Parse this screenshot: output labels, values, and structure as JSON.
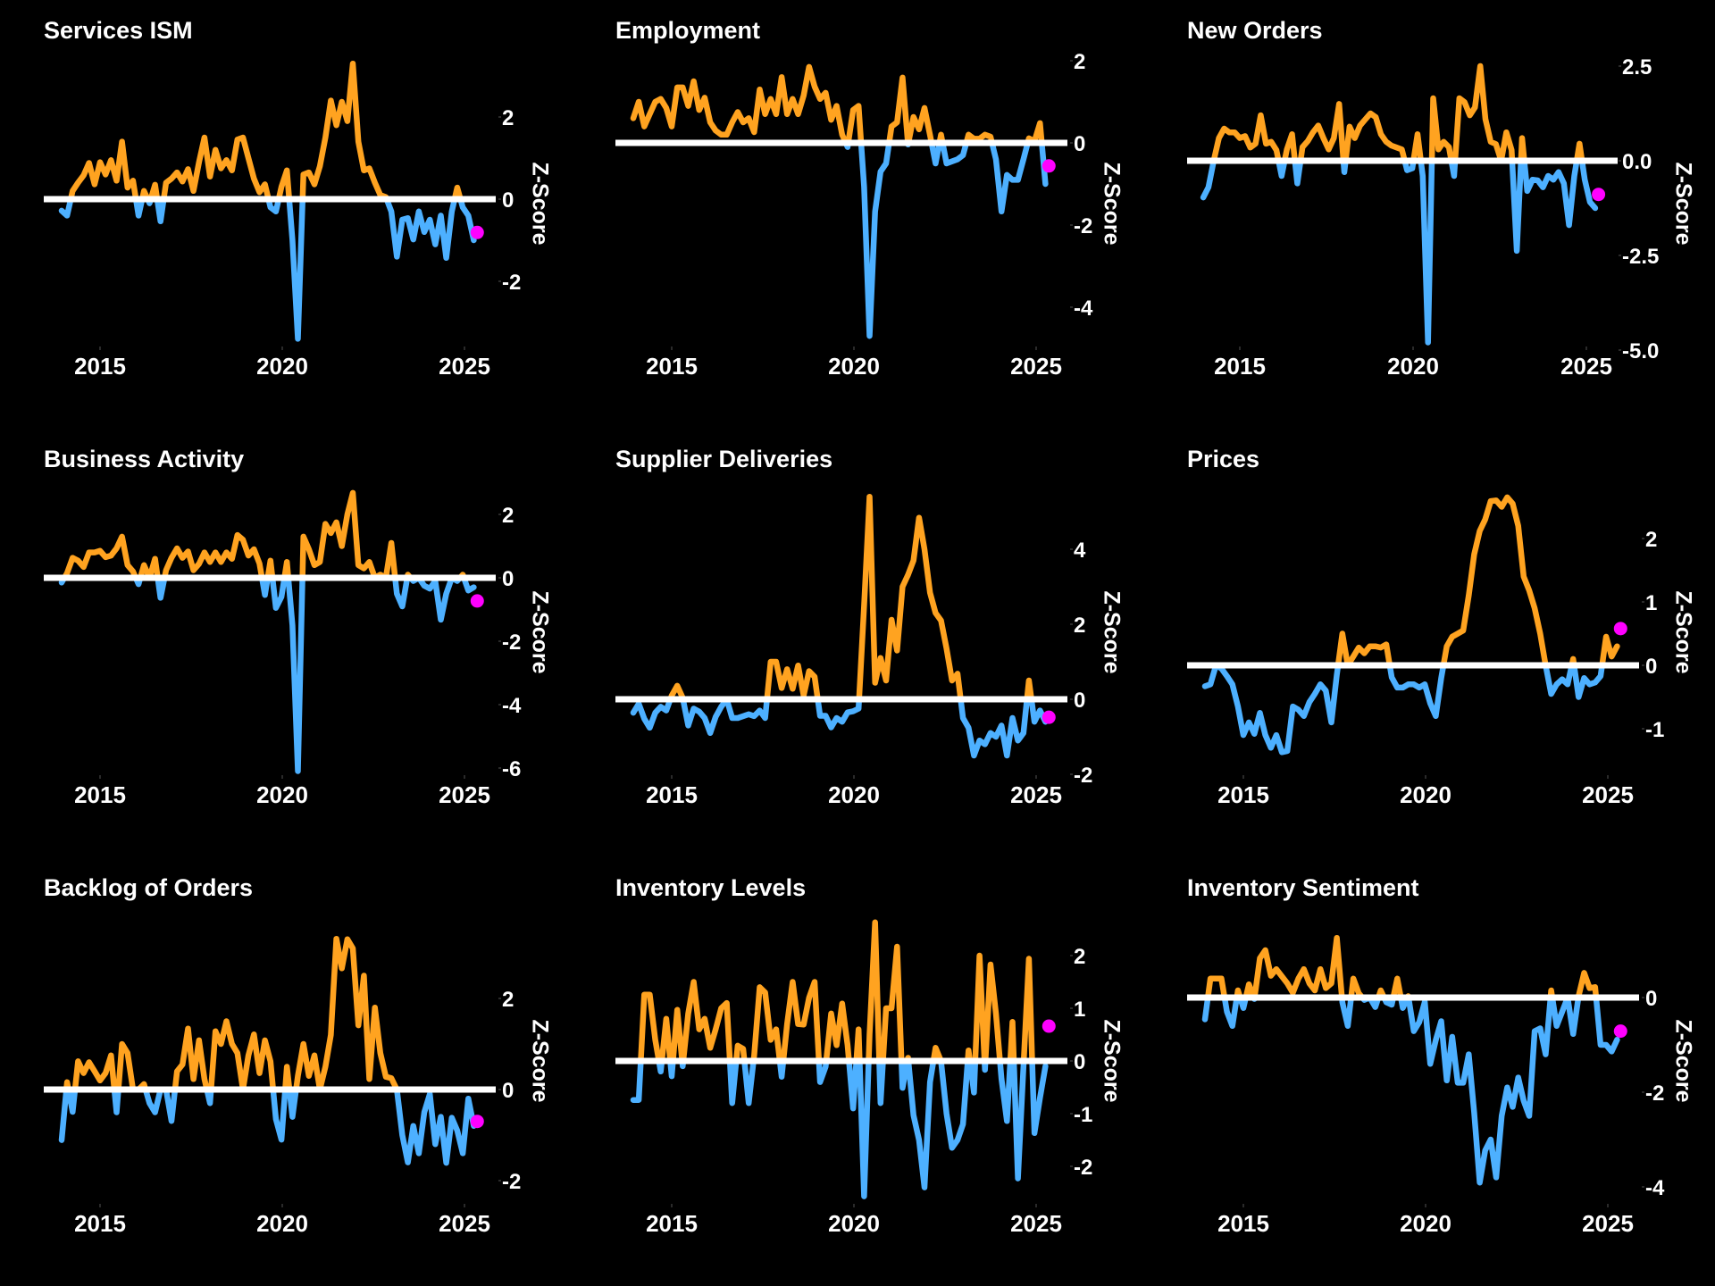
{
  "figure": {
    "background": "#000000",
    "colors": {
      "above_zero": "#FFA320",
      "below_zero": "#4DB0FF",
      "zero_line": "#FFFFFF",
      "latest_marker": "#FF00FF",
      "text": "#FFFFFF"
    },
    "layout_grid": "3x3"
  },
  "chart_data": [
    {
      "type": "line",
      "title": "Services ISM",
      "xlabel": "",
      "ylabel": "Z-Score",
      "x_ticks": [
        2015,
        2020,
        2025
      ],
      "y_ticks": [
        2,
        0,
        -2
      ],
      "y_tick_labels": [
        "2",
        "0",
        "-2"
      ],
      "x_start": 2013.945,
      "x_step": 0.1508,
      "values": [
        -0.28,
        -0.4,
        0.2,
        0.4,
        0.58,
        0.88,
        0.36,
        0.9,
        0.6,
        0.95,
        0.45,
        1.4,
        0.28,
        0.45,
        -0.4,
        0.2,
        -0.1,
        0.35,
        -0.54,
        0.4,
        0.5,
        0.65,
        0.43,
        0.73,
        0.2,
        0.9,
        1.5,
        0.55,
        1.2,
        0.75,
        0.95,
        0.7,
        1.45,
        1.5,
        1.0,
        0.5,
        0.17,
        0.36,
        -0.2,
        -0.3,
        0.3,
        0.7,
        -1.0,
        -3.4,
        0.6,
        0.65,
        0.36,
        0.8,
        1.5,
        2.4,
        1.8,
        2.37,
        1.9,
        3.3,
        1.4,
        0.7,
        0.75,
        0.4,
        0.1,
        0.05,
        -0.3,
        -1.4,
        -0.5,
        -0.46,
        -0.98,
        -0.3,
        -0.8,
        -0.5,
        -1.1,
        -0.4,
        -1.43,
        -0.3,
        0.28,
        -0.2,
        -0.4,
        -1.0
      ],
      "latest": {
        "x": 2025.35,
        "y": -0.81
      },
      "reference_line": 0
    },
    {
      "type": "line",
      "title": "Employment",
      "xlabel": "",
      "ylabel": "Z-Score",
      "x_ticks": [
        2015,
        2020,
        2025
      ],
      "y_ticks": [
        2,
        0,
        -2,
        -4
      ],
      "y_tick_labels": [
        "2",
        "0",
        "-2",
        "-4"
      ],
      "x_start": 2013.945,
      "x_step": 0.1508,
      "values": [
        0.6,
        1.0,
        0.4,
        0.7,
        1.0,
        1.07,
        0.85,
        0.4,
        1.35,
        1.35,
        0.9,
        1.5,
        0.8,
        1.1,
        0.5,
        0.3,
        0.2,
        0.2,
        0.5,
        0.75,
        0.5,
        0.6,
        0.26,
        1.3,
        0.7,
        1.07,
        0.7,
        1.6,
        0.7,
        1.07,
        0.7,
        1.15,
        1.85,
        1.37,
        1.07,
        1.22,
        0.56,
        0.9,
        0.2,
        -0.1,
        0.8,
        0.9,
        -1.07,
        -4.7,
        -1.67,
        -0.7,
        -0.5,
        0.4,
        0.5,
        1.59,
        -0.04,
        0.63,
        0.33,
        0.85,
        0.19,
        -0.5,
        0.2,
        -0.5,
        -0.45,
        -0.4,
        -0.3,
        0.2,
        0.1,
        0.1,
        0.2,
        0.15,
        -0.4,
        -1.67,
        -0.78,
        -0.9,
        -0.9,
        -0.4,
        0.11,
        0.04,
        0.48,
        -1.0
      ],
      "latest": {
        "x": 2025.35,
        "y": -0.56
      },
      "reference_line": 0
    },
    {
      "type": "line",
      "title": "New Orders",
      "xlabel": "",
      "ylabel": "Z-Score",
      "x_ticks": [
        2015,
        2020,
        2025
      ],
      "y_ticks": [
        2.5,
        0,
        -2.5,
        -5
      ],
      "y_tick_labels": [
        "2.5",
        "0.0",
        "-2.5",
        "-5.0"
      ],
      "x_start": 2013.945,
      "x_step": 0.1508,
      "values": [
        -0.97,
        -0.7,
        0.0,
        0.6,
        0.85,
        0.75,
        0.75,
        0.6,
        0.65,
        0.35,
        0.45,
        1.2,
        0.45,
        0.5,
        0.28,
        -0.4,
        0.3,
        0.7,
        -0.6,
        0.36,
        0.52,
        0.75,
        0.93,
        0.6,
        0.3,
        0.6,
        1.5,
        -0.3,
        0.9,
        0.6,
        0.93,
        1.09,
        1.25,
        1.15,
        0.7,
        0.5,
        0.4,
        0.35,
        0.3,
        -0.25,
        -0.2,
        0.7,
        -0.4,
        -4.8,
        1.65,
        0.3,
        0.5,
        0.36,
        -0.4,
        1.65,
        1.55,
        1.2,
        1.41,
        2.5,
        1.1,
        0.5,
        0.44,
        0.0,
        0.75,
        0.28,
        -2.38,
        0.6,
        -0.8,
        -0.5,
        -0.52,
        -0.7,
        -0.4,
        -0.5,
        -0.3,
        -0.6,
        -1.7,
        -0.4,
        0.45,
        -0.5,
        -1.09,
        -1.25
      ],
      "latest": {
        "x": 2025.35,
        "y": -0.89
      },
      "reference_line": 0
    },
    {
      "type": "line",
      "title": "Business Activity",
      "xlabel": "",
      "ylabel": "Z-Score",
      "x_ticks": [
        2015,
        2020,
        2025
      ],
      "y_ticks": [
        2,
        0,
        -2,
        -4,
        -6
      ],
      "y_tick_labels": [
        "2",
        "0",
        "-2",
        "-4",
        "-6"
      ],
      "x_start": 2013.945,
      "x_step": 0.1508,
      "values": [
        -0.15,
        0.15,
        0.63,
        0.54,
        0.34,
        0.8,
        0.8,
        0.85,
        0.65,
        0.7,
        0.93,
        1.3,
        0.4,
        0.2,
        -0.2,
        0.4,
        0.0,
        0.6,
        -0.63,
        0.24,
        0.63,
        0.93,
        0.63,
        0.83,
        0.24,
        0.44,
        0.8,
        0.5,
        0.8,
        0.5,
        0.8,
        0.6,
        1.35,
        1.2,
        0.7,
        0.9,
        0.45,
        -0.54,
        0.54,
        -0.95,
        -0.6,
        0.5,
        -1.5,
        -6.1,
        1.3,
        0.9,
        0.4,
        0.5,
        1.7,
        1.41,
        1.75,
        1.0,
        2.0,
        2.68,
        0.4,
        0.3,
        0.5,
        0.0,
        0.1,
        0.0,
        1.1,
        -0.5,
        -0.9,
        0.1,
        -0.1,
        0.0,
        -0.25,
        -0.34,
        -0.1,
        -1.32,
        -0.5,
        0.0,
        -0.1,
        0.1,
        -0.4,
        -0.3
      ],
      "latest": {
        "x": 2025.35,
        "y": -0.73
      },
      "reference_line": 0
    },
    {
      "type": "line",
      "title": "Supplier Deliveries",
      "xlabel": "",
      "ylabel": "Z-Score",
      "x_ticks": [
        2015,
        2020,
        2025
      ],
      "y_ticks": [
        4,
        2,
        0,
        -2
      ],
      "y_tick_labels": [
        "4",
        "2",
        "0",
        "-2"
      ],
      "x_start": 2013.945,
      "x_step": 0.1508,
      "values": [
        -0.36,
        -0.12,
        -0.52,
        -0.76,
        -0.36,
        -0.2,
        -0.3,
        0.1,
        0.36,
        0.04,
        -0.7,
        -0.25,
        -0.33,
        -0.5,
        -0.9,
        -0.47,
        -0.2,
        0.0,
        -0.5,
        -0.5,
        -0.45,
        -0.4,
        -0.45,
        -0.3,
        -0.5,
        1.0,
        1.0,
        0.3,
        0.8,
        0.28,
        0.9,
        0.1,
        0.75,
        0.6,
        -0.44,
        -0.44,
        -0.75,
        -0.5,
        -0.6,
        -0.35,
        -0.32,
        -0.25,
        2.5,
        5.4,
        0.44,
        1.1,
        0.5,
        2.12,
        1.3,
        3.0,
        3.32,
        3.7,
        4.84,
        4.0,
        2.84,
        2.3,
        2.1,
        1.35,
        0.5,
        0.68,
        -0.5,
        -0.76,
        -1.5,
        -1.1,
        -1.2,
        -0.9,
        -1.0,
        -0.7,
        -1.5,
        -0.5,
        -1.1,
        -0.9,
        0.5,
        -0.6,
        -0.3,
        -0.6
      ],
      "latest": {
        "x": 2025.35,
        "y": -0.48
      },
      "reference_line": 0
    },
    {
      "type": "line",
      "title": "Prices",
      "xlabel": "",
      "ylabel": "Z-Score",
      "x_ticks": [
        2015,
        2020,
        2025
      ],
      "y_ticks": [
        2,
        1,
        0,
        -1
      ],
      "y_tick_labels": [
        "2",
        "1",
        "0",
        "-1"
      ],
      "x_start": 2013.945,
      "x_step": 0.1508,
      "values": [
        -0.33,
        -0.3,
        0.0,
        -0.05,
        -0.17,
        -0.3,
        -0.65,
        -1.1,
        -0.9,
        -1.08,
        -0.75,
        -1.1,
        -1.3,
        -1.1,
        -1.37,
        -1.35,
        -0.65,
        -0.7,
        -0.8,
        -0.58,
        -0.45,
        -0.3,
        -0.4,
        -0.9,
        -0.15,
        0.5,
        0.0,
        0.14,
        0.28,
        0.19,
        0.3,
        0.3,
        0.28,
        0.33,
        -0.19,
        -0.35,
        -0.35,
        -0.3,
        -0.3,
        -0.35,
        -0.3,
        -0.6,
        -0.8,
        -0.2,
        0.3,
        0.45,
        0.5,
        0.55,
        1.1,
        1.75,
        2.12,
        2.3,
        2.59,
        2.6,
        2.5,
        2.65,
        2.55,
        2.2,
        1.4,
        1.18,
        0.9,
        0.5,
        0.0,
        -0.45,
        -0.3,
        -0.22,
        -0.3,
        0.1,
        -0.5,
        -0.2,
        -0.3,
        -0.27,
        -0.17,
        0.45,
        0.14,
        0.3
      ],
      "latest": {
        "x": 2025.35,
        "y": 0.58
      },
      "reference_line": 0
    },
    {
      "type": "line",
      "title": "Backlog of Orders",
      "xlabel": "",
      "ylabel": "Z-Score",
      "x_ticks": [
        2015,
        2020,
        2025
      ],
      "y_ticks": [
        2,
        0,
        -2
      ],
      "y_tick_labels": [
        "2",
        "0",
        "-2"
      ],
      "x_start": 2013.945,
      "x_step": 0.1508,
      "values": [
        -1.11,
        0.16,
        -0.49,
        0.62,
        0.36,
        0.6,
        0.4,
        0.2,
        0.36,
        0.75,
        -0.5,
        1.0,
        0.8,
        0.0,
        0.0,
        0.12,
        -0.3,
        -0.5,
        0.0,
        0.0,
        -0.69,
        0.4,
        0.55,
        1.34,
        0.23,
        1.08,
        0.23,
        -0.3,
        1.28,
        1.0,
        1.5,
        1.0,
        0.8,
        0.0,
        0.75,
        1.21,
        0.36,
        1.08,
        0.62,
        -0.65,
        -1.1,
        0.5,
        -0.6,
        0.3,
        1.0,
        0.3,
        0.75,
        0.0,
        0.5,
        1.2,
        3.31,
        2.66,
        3.3,
        3.1,
        1.41,
        2.5,
        0.23,
        1.8,
        0.8,
        0.28,
        0.25,
        0.0,
        -1.0,
        -1.6,
        -0.8,
        -1.4,
        -0.5,
        -0.1,
        -1.2,
        -0.6,
        -1.61,
        -0.62,
        -0.9,
        -1.4,
        -0.2,
        -0.8
      ],
      "latest": {
        "x": 2025.35,
        "y": -0.7
      },
      "reference_line": 0
    },
    {
      "type": "line",
      "title": "Inventory Levels",
      "xlabel": "",
      "ylabel": "Z-Score",
      "x_ticks": [
        2015,
        2020,
        2025
      ],
      "y_ticks": [
        2,
        1,
        0,
        -1,
        -2
      ],
      "y_tick_labels": [
        "2",
        "1",
        "0",
        "-1",
        "-2"
      ],
      "x_start": 2013.945,
      "x_step": 0.1508,
      "values": [
        -0.74,
        -0.74,
        1.26,
        1.26,
        0.4,
        -0.2,
        0.8,
        -0.29,
        0.97,
        -0.1,
        0.9,
        1.5,
        0.6,
        0.8,
        0.25,
        0.6,
        1.0,
        1.1,
        -0.8,
        0.29,
        0.23,
        -0.8,
        0.1,
        1.4,
        1.3,
        0.4,
        0.6,
        -0.3,
        0.7,
        1.5,
        0.7,
        0.69,
        1.2,
        1.5,
        -0.4,
        -0.11,
        0.9,
        0.3,
        1.09,
        0.3,
        -0.9,
        0.6,
        -2.57,
        0.5,
        2.63,
        -0.8,
        1.0,
        1.0,
        2.17,
        -0.51,
        0.06,
        -1.03,
        -1.5,
        -2.4,
        -0.4,
        0.25,
        0.0,
        -1.0,
        -1.65,
        -1.5,
        -1.2,
        0.2,
        -0.6,
        2.0,
        -0.17,
        1.83,
        0.9,
        -0.34,
        -1.14,
        0.74,
        -2.23,
        -0.11,
        1.94,
        -1.37,
        -0.7,
        -0.1
      ],
      "latest": {
        "x": 2025.35,
        "y": 0.66
      },
      "reference_line": 0
    },
    {
      "type": "line",
      "title": "Inventory Sentiment",
      "xlabel": "",
      "ylabel": "Z-Score",
      "x_ticks": [
        2015,
        2020,
        2025
      ],
      "y_ticks": [
        0,
        -2,
        -4
      ],
      "y_tick_labels": [
        "0",
        "-2",
        "-4"
      ],
      "x_start": 2013.945,
      "x_step": 0.1508,
      "values": [
        -0.46,
        0.4,
        0.4,
        0.4,
        -0.3,
        -0.6,
        0.15,
        -0.22,
        0.28,
        -0.03,
        0.83,
        1.0,
        0.46,
        0.6,
        0.45,
        0.3,
        0.1,
        0.4,
        0.6,
        0.3,
        0.15,
        0.6,
        0.2,
        0.3,
        1.26,
        -0.1,
        -0.6,
        0.4,
        0.09,
        -0.05,
        0.0,
        -0.2,
        0.15,
        -0.1,
        -0.15,
        0.4,
        -0.22,
        0.03,
        -0.71,
        -0.52,
        -0.09,
        -1.4,
        -0.9,
        -0.5,
        -1.75,
        -0.83,
        -1.8,
        -1.8,
        -1.2,
        -2.43,
        -3.91,
        -3.23,
        -3.0,
        -3.8,
        -2.5,
        -1.9,
        -2.31,
        -1.69,
        -2.18,
        -2.5,
        -0.71,
        -0.65,
        -1.2,
        0.15,
        -0.6,
        -0.3,
        0.0,
        -0.77,
        0.03,
        0.52,
        0.2,
        0.22,
        -1.0,
        -1.0,
        -1.14,
        -0.89
      ],
      "latest": {
        "x": 2025.35,
        "y": -0.71
      },
      "reference_line": 0
    }
  ]
}
